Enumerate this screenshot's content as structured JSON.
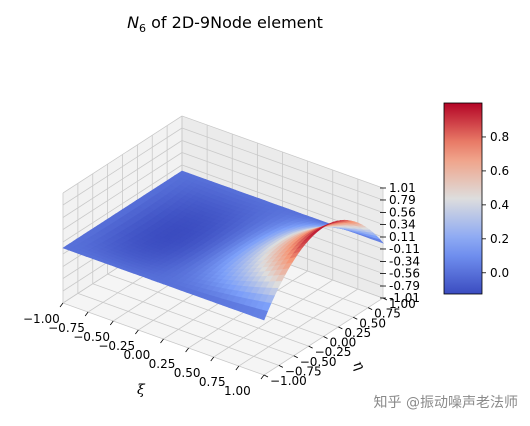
{
  "chart_data": {
    "type": "surface",
    "title": {
      "base": "N",
      "sub": "6",
      "rest": " of 2D-9Node element"
    },
    "xlabel": "ξ",
    "ylabel": "η",
    "xlim": [
      -1.0,
      1.0
    ],
    "ylim": [
      -1.0,
      1.0
    ],
    "zlim": [
      -1.01,
      1.01
    ],
    "x_ticks": [
      "−1.00",
      "−0.75",
      "−0.50",
      "−0.25",
      "0.00",
      "0.25",
      "0.50",
      "0.75",
      "1.00"
    ],
    "y_ticks": [
      "−1.00",
      "−0.75",
      "−0.50",
      "−0.25",
      "0.00",
      "0.25",
      "0.50",
      "0.75",
      "1.00"
    ],
    "z_ticks": [
      "1.01",
      "0.79",
      "0.56",
      "0.34",
      "0.11",
      "-0.11",
      "-0.34",
      "-0.56",
      "-0.79",
      "-1.01"
    ],
    "colorbar_ticks": [
      "0.8",
      "0.6",
      "0.4",
      "0.2",
      "0.0"
    ],
    "colorbar_range": [
      -0.125,
      1.0
    ],
    "colormap": "coolwarm",
    "grid": true,
    "function": "N6 = 0.5·ξ·(ξ+1)·(1−η²)",
    "surface_peak": {
      "xi": 1.0,
      "eta": 0.0,
      "value": 1.0
    },
    "surface_min": {
      "value": -0.125,
      "xi": -0.5,
      "eta": 0.0
    }
  },
  "watermark": "知乎 @振动噪声老法师"
}
